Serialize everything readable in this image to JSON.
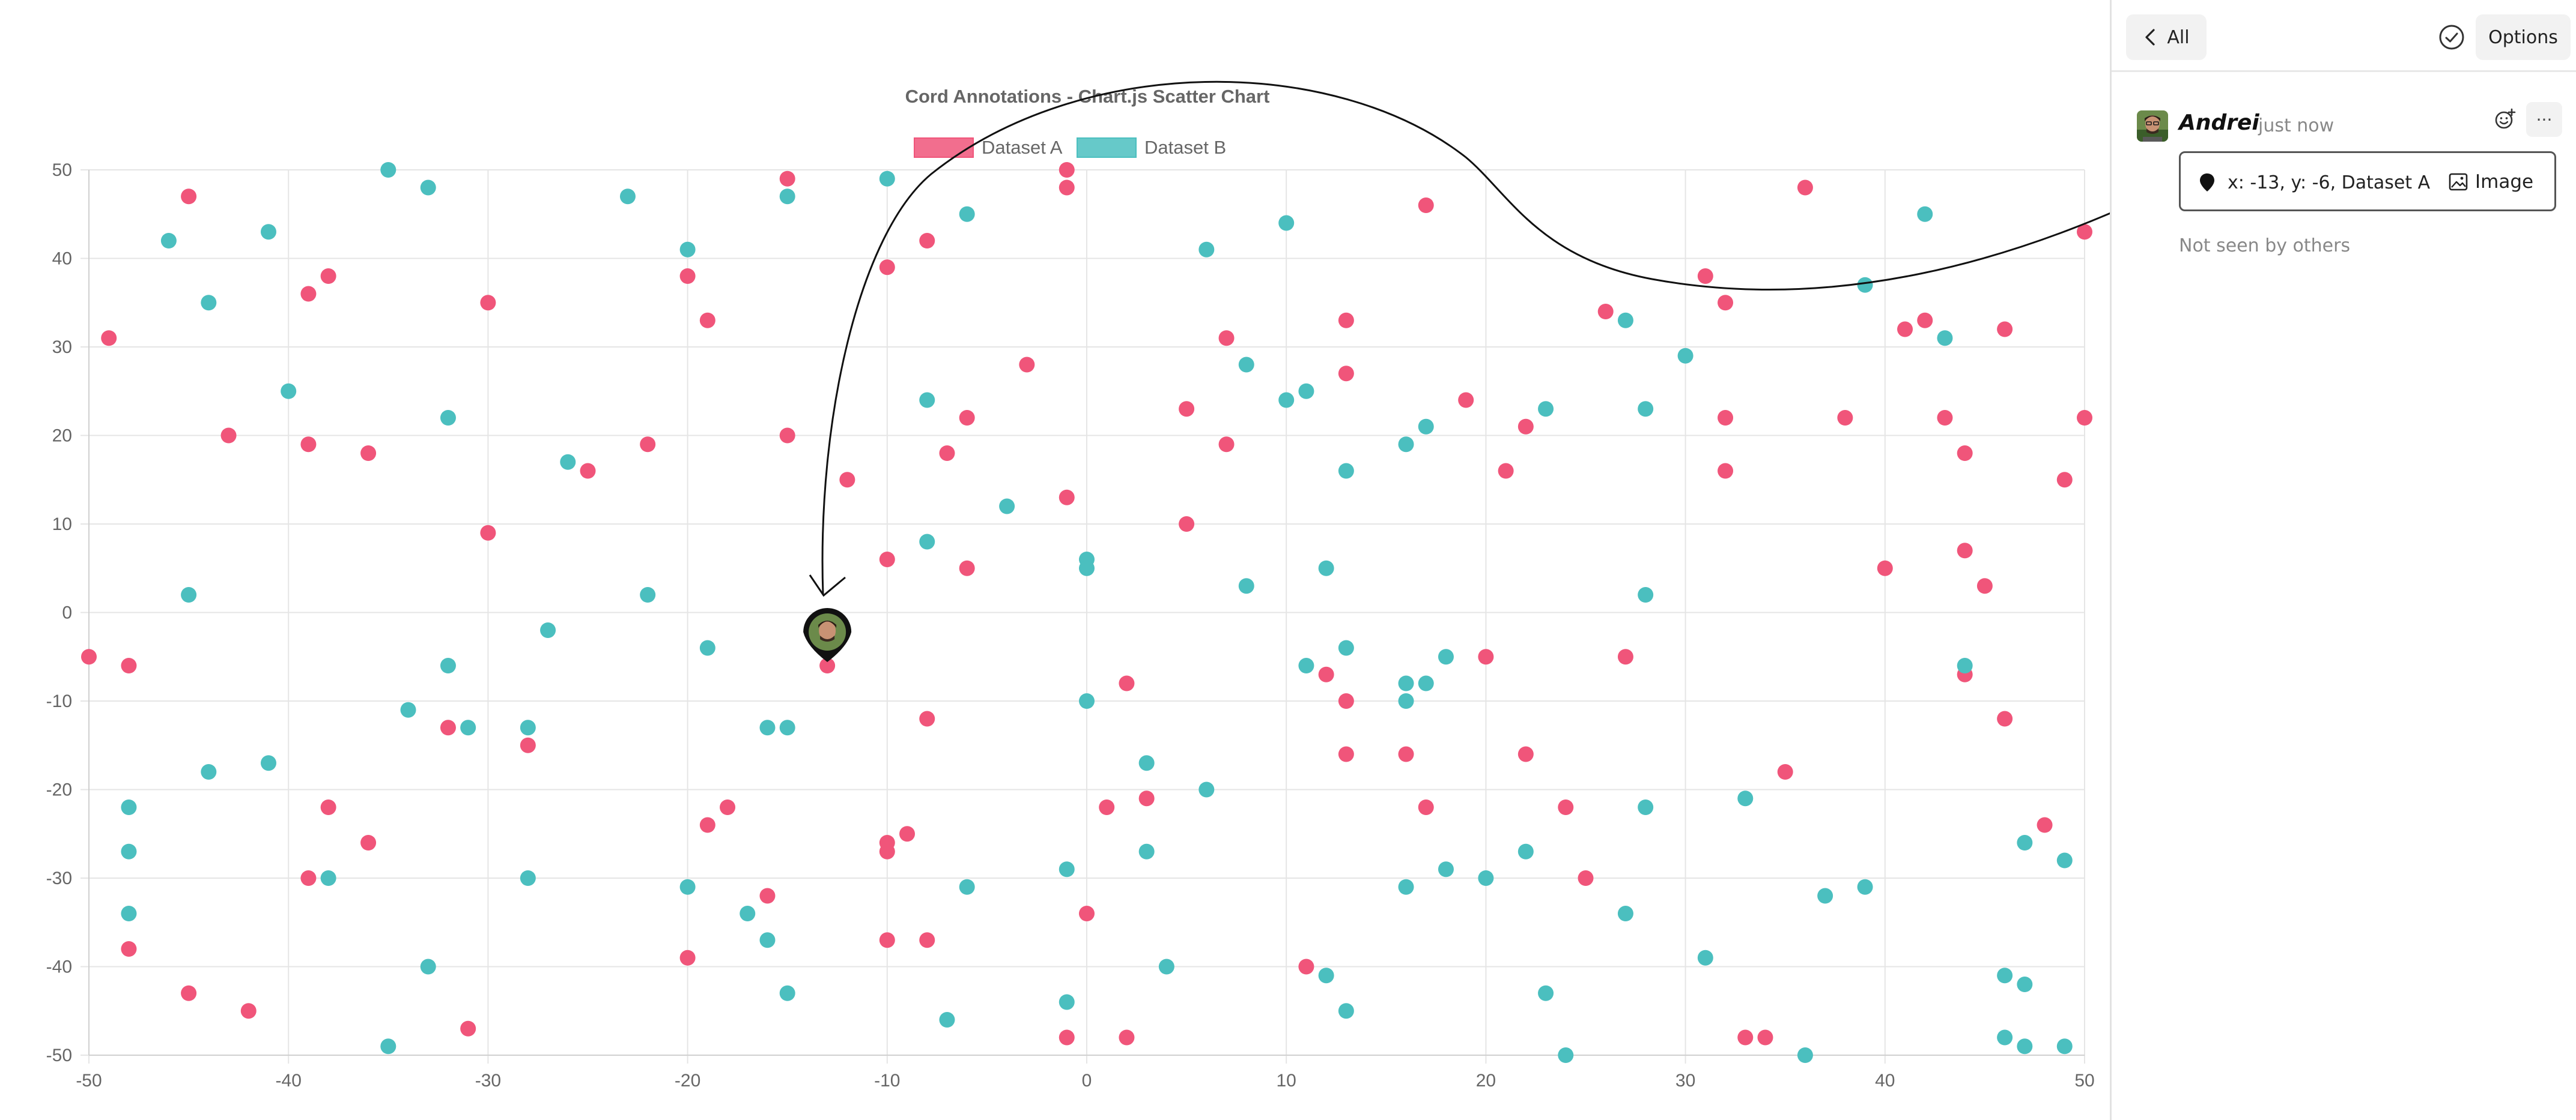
{
  "chart_data": {
    "type": "scatter",
    "title": "Cord Annotations - Chart.js Scatter Chart",
    "xlim": [
      -50,
      50
    ],
    "ylim": [
      -50,
      50
    ],
    "xticks": [
      "-50",
      "-40",
      "-30",
      "-20",
      "-10",
      "0",
      "10",
      "20",
      "30",
      "40",
      "50"
    ],
    "yticks": [
      "50",
      "40",
      "30",
      "20",
      "10",
      "0",
      "-10",
      "-20",
      "-30",
      "-40",
      "-50"
    ],
    "grid": true,
    "legend_position": "top",
    "series": [
      {
        "name": "Dataset A",
        "color": "#f0557a",
        "points": [
          [
            -50,
            -5
          ],
          [
            -49,
            31
          ],
          [
            -48,
            -6
          ],
          [
            -48,
            -38
          ],
          [
            -45,
            47
          ],
          [
            -45,
            -43
          ],
          [
            -43,
            20
          ],
          [
            -42,
            -45
          ],
          [
            -39,
            36
          ],
          [
            -39,
            19
          ],
          [
            -39,
            -30
          ],
          [
            -38,
            38
          ],
          [
            -38,
            -22
          ],
          [
            -36,
            18
          ],
          [
            -36,
            -26
          ],
          [
            -32,
            -13
          ],
          [
            -31,
            -47
          ],
          [
            -30,
            35
          ],
          [
            -30,
            9
          ],
          [
            -28,
            -15
          ],
          [
            -25,
            16
          ],
          [
            -22,
            19
          ],
          [
            -20,
            38
          ],
          [
            -20,
            -39
          ],
          [
            -19,
            33
          ],
          [
            -19,
            -24
          ],
          [
            -18,
            -22
          ],
          [
            -16,
            -32
          ],
          [
            -15,
            49
          ],
          [
            -15,
            20
          ],
          [
            -13,
            -6
          ],
          [
            -12,
            15
          ],
          [
            -10,
            39
          ],
          [
            -10,
            6
          ],
          [
            -10,
            -26
          ],
          [
            -10,
            -27
          ],
          [
            -10,
            -37
          ],
          [
            -9,
            -25
          ],
          [
            -8,
            42
          ],
          [
            -8,
            -12
          ],
          [
            -8,
            -37
          ],
          [
            -7,
            18
          ],
          [
            -6,
            22
          ],
          [
            -6,
            5
          ],
          [
            -3,
            28
          ],
          [
            -1,
            50
          ],
          [
            -1,
            48
          ],
          [
            -1,
            13
          ],
          [
            -1,
            -48
          ],
          [
            0,
            -34
          ],
          [
            1,
            -22
          ],
          [
            2,
            -8
          ],
          [
            2,
            -48
          ],
          [
            3,
            -21
          ],
          [
            5,
            23
          ],
          [
            5,
            10
          ],
          [
            7,
            31
          ],
          [
            7,
            19
          ],
          [
            11,
            -40
          ],
          [
            12,
            -7
          ],
          [
            13,
            33
          ],
          [
            13,
            27
          ],
          [
            13,
            -10
          ],
          [
            13,
            -16
          ],
          [
            16,
            -16
          ],
          [
            17,
            46
          ],
          [
            17,
            -22
          ],
          [
            19,
            24
          ],
          [
            20,
            -5
          ],
          [
            21,
            16
          ],
          [
            22,
            21
          ],
          [
            22,
            -16
          ],
          [
            24,
            -22
          ],
          [
            25,
            -30
          ],
          [
            26,
            34
          ],
          [
            27,
            -5
          ],
          [
            31,
            38
          ],
          [
            32,
            35
          ],
          [
            32,
            22
          ],
          [
            32,
            16
          ],
          [
            33,
            -48
          ],
          [
            34,
            -48
          ],
          [
            35,
            -18
          ],
          [
            36,
            48
          ],
          [
            38,
            22
          ],
          [
            40,
            5
          ],
          [
            41,
            32
          ],
          [
            42,
            33
          ],
          [
            43,
            22
          ],
          [
            44,
            18
          ],
          [
            44,
            7
          ],
          [
            44,
            -7
          ],
          [
            45,
            3
          ],
          [
            46,
            32
          ],
          [
            46,
            -12
          ],
          [
            48,
            -24
          ],
          [
            49,
            15
          ],
          [
            50,
            43
          ],
          [
            50,
            22
          ]
        ]
      },
      {
        "name": "Dataset B",
        "color": "#4bbfbf",
        "points": [
          [
            -48,
            -22
          ],
          [
            -48,
            -27
          ],
          [
            -48,
            -34
          ],
          [
            -46,
            42
          ],
          [
            -45,
            2
          ],
          [
            -44,
            35
          ],
          [
            -44,
            -18
          ],
          [
            -41,
            43
          ],
          [
            -41,
            -17
          ],
          [
            -40,
            25
          ],
          [
            -38,
            -30
          ],
          [
            -35,
            50
          ],
          [
            -35,
            -49
          ],
          [
            -34,
            -11
          ],
          [
            -33,
            48
          ],
          [
            -33,
            -40
          ],
          [
            -32,
            22
          ],
          [
            -32,
            -6
          ],
          [
            -31,
            -13
          ],
          [
            -28,
            -13
          ],
          [
            -28,
            -30
          ],
          [
            -27,
            -2
          ],
          [
            -26,
            17
          ],
          [
            -23,
            47
          ],
          [
            -22,
            2
          ],
          [
            -20,
            41
          ],
          [
            -20,
            -31
          ],
          [
            -19,
            -4
          ],
          [
            -17,
            -34
          ],
          [
            -16,
            -13
          ],
          [
            -16,
            -37
          ],
          [
            -15,
            47
          ],
          [
            -15,
            -13
          ],
          [
            -15,
            -43
          ],
          [
            -10,
            49
          ],
          [
            -8,
            24
          ],
          [
            -8,
            8
          ],
          [
            -7,
            -46
          ],
          [
            -6,
            45
          ],
          [
            -6,
            -31
          ],
          [
            -4,
            12
          ],
          [
            -1,
            -29
          ],
          [
            -1,
            -44
          ],
          [
            0,
            6
          ],
          [
            0,
            5
          ],
          [
            0,
            -10
          ],
          [
            3,
            -17
          ],
          [
            3,
            -27
          ],
          [
            4,
            -40
          ],
          [
            6,
            41
          ],
          [
            6,
            -20
          ],
          [
            8,
            28
          ],
          [
            8,
            3
          ],
          [
            10,
            44
          ],
          [
            10,
            24
          ],
          [
            11,
            25
          ],
          [
            11,
            -6
          ],
          [
            12,
            5
          ],
          [
            12,
            -41
          ],
          [
            13,
            16
          ],
          [
            13,
            -4
          ],
          [
            13,
            -45
          ],
          [
            16,
            19
          ],
          [
            16,
            -8
          ],
          [
            16,
            -10
          ],
          [
            16,
            -31
          ],
          [
            17,
            21
          ],
          [
            17,
            -8
          ],
          [
            18,
            -5
          ],
          [
            18,
            -29
          ],
          [
            20,
            -30
          ],
          [
            22,
            -27
          ],
          [
            23,
            23
          ],
          [
            23,
            -43
          ],
          [
            24,
            -50
          ],
          [
            27,
            33
          ],
          [
            27,
            -34
          ],
          [
            28,
            23
          ],
          [
            28,
            2
          ],
          [
            28,
            -22
          ],
          [
            30,
            29
          ],
          [
            31,
            -39
          ],
          [
            33,
            -21
          ],
          [
            36,
            -50
          ],
          [
            37,
            -32
          ],
          [
            39,
            37
          ],
          [
            39,
            -31
          ],
          [
            42,
            45
          ],
          [
            43,
            31
          ],
          [
            44,
            -6
          ],
          [
            46,
            -41
          ],
          [
            46,
            -48
          ],
          [
            47,
            -26
          ],
          [
            47,
            -42
          ],
          [
            47,
            -49
          ],
          [
            49,
            -28
          ],
          [
            49,
            -49
          ]
        ]
      }
    ],
    "annotation": {
      "x": -13,
      "y": -6,
      "series": "Dataset A"
    }
  },
  "panel": {
    "back_label": "All",
    "options_label": "Options",
    "message": {
      "author": "Andrei",
      "time": "just now",
      "annotation_text": "x: -13, y: -6, Dataset A",
      "image_label": "Image",
      "more_label": "···"
    },
    "seen_status": "Not seen by others"
  },
  "icons": {
    "back": "chevron-left-icon",
    "resolve": "check-circle-icon",
    "react": "add-reaction-icon",
    "pin": "location-pin-icon",
    "image": "image-icon"
  },
  "colors": {
    "accent_red": "#f0557a",
    "accent_teal": "#4bbfbf",
    "text_muted": "#888888"
  }
}
